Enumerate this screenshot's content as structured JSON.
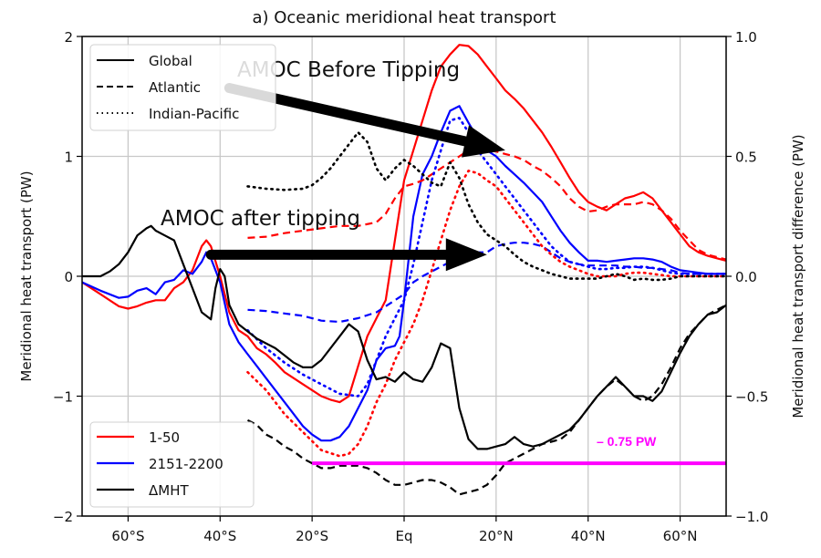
{
  "chart_data": {
    "type": "line",
    "title": "a) Oceanic meridional heat transport",
    "xlabel": "",
    "ylabel": "Meridional heat transport (PW)",
    "y2label": "Meridional heat transport difference (PW)",
    "xlim": [
      -70,
      70
    ],
    "ylim": [
      -2,
      2
    ],
    "y2lim": [
      -1.0,
      1.0
    ],
    "grid": true,
    "x_ticks": [
      {
        "value": -60,
        "label": "60°S"
      },
      {
        "value": -40,
        "label": "40°S"
      },
      {
        "value": -20,
        "label": "20°S"
      },
      {
        "value": 0,
        "label": "Eq"
      },
      {
        "value": 20,
        "label": "20°N"
      },
      {
        "value": 40,
        "label": "40°N"
      },
      {
        "value": 60,
        "label": "60°N"
      }
    ],
    "y_ticks": [
      {
        "value": 2,
        "label": "2"
      },
      {
        "value": 1,
        "label": "1"
      },
      {
        "value": 0,
        "label": "0"
      },
      {
        "value": -1,
        "label": "−1"
      },
      {
        "value": -2,
        "label": "−2"
      }
    ],
    "y2_ticks": [
      {
        "value": 1.0,
        "label": "1.0"
      },
      {
        "value": 0.5,
        "label": "0.5"
      },
      {
        "value": 0.0,
        "label": "0.0"
      },
      {
        "value": -0.5,
        "label": "−0.5"
      },
      {
        "value": -1.0,
        "label": "−1.0"
      }
    ],
    "legend_style": {
      "placement": "upper-left",
      "entries": [
        {
          "label": "Global",
          "dash": "solid"
        },
        {
          "label": "Atlantic",
          "dash": "dashed"
        },
        {
          "label": "Indian-Pacific",
          "dash": "dotted"
        }
      ]
    },
    "legend_color": {
      "placement": "lower-left",
      "entries": [
        {
          "label": "1-50",
          "color": "#ff0000"
        },
        {
          "label": "2151-2200",
          "color": "#0000ff"
        },
        {
          "label": "ΔMHT",
          "color": "#000000"
        }
      ]
    },
    "series": [
      {
        "name": "Global 1-50",
        "color": "#ff0000",
        "dash": "solid",
        "axis": "left",
        "x": [
          -70,
          -66,
          -62,
          -60,
          -58,
          -56,
          -54,
          -52,
          -50,
          -48,
          -46,
          -44,
          -43,
          -42,
          -40,
          -38,
          -36,
          -34,
          -32,
          -30,
          -28,
          -26,
          -24,
          -22,
          -20,
          -18,
          -16,
          -14,
          -12,
          -10,
          -8,
          -6,
          -4,
          -2,
          0,
          2,
          4,
          6,
          8,
          10,
          12,
          14,
          16,
          18,
          20,
          22,
          24,
          26,
          28,
          30,
          32,
          34,
          36,
          38,
          40,
          42,
          44,
          46,
          48,
          50,
          52,
          54,
          56,
          58,
          60,
          62,
          64,
          66,
          68,
          70
        ],
        "y": [
          -0.05,
          -0.15,
          -0.25,
          -0.27,
          -0.25,
          -0.22,
          -0.2,
          -0.2,
          -0.1,
          -0.05,
          0.05,
          0.25,
          0.3,
          0.25,
          0.0,
          -0.3,
          -0.45,
          -0.5,
          -0.6,
          -0.65,
          -0.72,
          -0.8,
          -0.85,
          -0.9,
          -0.95,
          -1.0,
          -1.03,
          -1.05,
          -1.0,
          -0.75,
          -0.5,
          -0.35,
          -0.2,
          0.3,
          0.8,
          1.05,
          1.3,
          1.55,
          1.75,
          1.85,
          1.93,
          1.92,
          1.85,
          1.75,
          1.65,
          1.55,
          1.48,
          1.4,
          1.3,
          1.2,
          1.08,
          0.95,
          0.82,
          0.7,
          0.62,
          0.58,
          0.55,
          0.6,
          0.65,
          0.67,
          0.7,
          0.65,
          0.55,
          0.45,
          0.35,
          0.25,
          0.2,
          0.17,
          0.15,
          0.13
        ]
      },
      {
        "name": "Global 2151-2200",
        "color": "#0000ff",
        "dash": "solid",
        "axis": "left",
        "x": [
          -70,
          -66,
          -62,
          -60,
          -58,
          -56,
          -54,
          -52,
          -50,
          -48,
          -46,
          -44,
          -43,
          -42,
          -40,
          -38,
          -36,
          -34,
          -32,
          -30,
          -28,
          -26,
          -24,
          -22,
          -20,
          -18,
          -16,
          -14,
          -12,
          -10,
          -8,
          -6,
          -4,
          -2,
          -1,
          0,
          2,
          4,
          6,
          8,
          10,
          12,
          14,
          16,
          18,
          20,
          22,
          24,
          26,
          28,
          30,
          32,
          34,
          36,
          38,
          40,
          42,
          44,
          46,
          48,
          50,
          52,
          54,
          56,
          58,
          60,
          62,
          64,
          66,
          68,
          70
        ],
        "y": [
          -0.05,
          -0.12,
          -0.18,
          -0.17,
          -0.12,
          -0.1,
          -0.15,
          -0.05,
          -0.03,
          0.05,
          0.02,
          0.12,
          0.2,
          0.15,
          -0.05,
          -0.4,
          -0.55,
          -0.65,
          -0.75,
          -0.85,
          -0.95,
          -1.05,
          -1.15,
          -1.25,
          -1.32,
          -1.37,
          -1.37,
          -1.34,
          -1.25,
          -1.1,
          -0.95,
          -0.7,
          -0.6,
          -0.58,
          -0.5,
          -0.2,
          0.5,
          0.85,
          1.0,
          1.2,
          1.38,
          1.42,
          1.28,
          1.15,
          1.05,
          1.0,
          0.92,
          0.85,
          0.78,
          0.7,
          0.62,
          0.5,
          0.38,
          0.28,
          0.2,
          0.13,
          0.13,
          0.12,
          0.13,
          0.14,
          0.15,
          0.15,
          0.14,
          0.12,
          0.08,
          0.05,
          0.04,
          0.03,
          0.02,
          0.02,
          0.02
        ]
      },
      {
        "name": "Atlantic 1-50",
        "color": "#ff0000",
        "dash": "dashed",
        "axis": "left",
        "x": [
          -34,
          -30,
          -26,
          -22,
          -18,
          -14,
          -10,
          -6,
          -4,
          -2,
          0,
          2,
          4,
          6,
          8,
          10,
          12,
          14,
          16,
          18,
          20,
          22,
          24,
          26,
          28,
          30,
          32,
          34,
          36,
          38,
          40,
          42,
          44,
          46,
          48,
          50,
          52,
          54,
          56,
          58,
          60,
          62,
          64,
          66,
          68,
          70
        ],
        "y": [
          0.32,
          0.33,
          0.36,
          0.38,
          0.4,
          0.42,
          0.42,
          0.45,
          0.52,
          0.65,
          0.75,
          0.77,
          0.8,
          0.85,
          0.9,
          0.95,
          1.0,
          1.05,
          1.05,
          1.05,
          1.04,
          1.02,
          1.0,
          0.97,
          0.92,
          0.88,
          0.82,
          0.75,
          0.65,
          0.58,
          0.54,
          0.55,
          0.58,
          0.6,
          0.6,
          0.6,
          0.62,
          0.6,
          0.55,
          0.48,
          0.38,
          0.3,
          0.22,
          0.18,
          0.16,
          0.14
        ]
      },
      {
        "name": "Atlantic 2151-2200",
        "color": "#0000ff",
        "dash": "dashed",
        "axis": "left",
        "x": [
          -34,
          -30,
          -26,
          -22,
          -18,
          -14,
          -10,
          -6,
          -2,
          0,
          2,
          4,
          6,
          8,
          10,
          12,
          14,
          16,
          18,
          20,
          22,
          24,
          26,
          28,
          30,
          32,
          34,
          36,
          38,
          40,
          42,
          44,
          46,
          48,
          50,
          52,
          54,
          56,
          58,
          60,
          62,
          64,
          66,
          68,
          70
        ],
        "y": [
          -0.28,
          -0.29,
          -0.31,
          -0.33,
          -0.37,
          -0.38,
          -0.35,
          -0.3,
          -0.2,
          -0.15,
          -0.05,
          0.0,
          0.04,
          0.08,
          0.12,
          0.15,
          0.17,
          0.2,
          0.2,
          0.25,
          0.27,
          0.28,
          0.28,
          0.27,
          0.25,
          0.2,
          0.15,
          0.12,
          0.1,
          0.09,
          0.09,
          0.09,
          0.09,
          0.08,
          0.08,
          0.07,
          0.07,
          0.06,
          0.05,
          0.03,
          0.02,
          0.02,
          0.02,
          0.02,
          0.02
        ]
      },
      {
        "name": "Indian-Pacific 1-50",
        "color": "#ff0000",
        "dash": "dotted",
        "axis": "left",
        "x": [
          -34,
          -30,
          -26,
          -22,
          -18,
          -14,
          -12,
          -10,
          -8,
          -6,
          -4,
          -2,
          0,
          2,
          4,
          6,
          8,
          10,
          12,
          14,
          16,
          18,
          20,
          22,
          24,
          26,
          28,
          30,
          32,
          34,
          36,
          38,
          40,
          42,
          44,
          46,
          48,
          50,
          52,
          54,
          56,
          58,
          60,
          62,
          64,
          66,
          68,
          70
        ],
        "y": [
          -0.8,
          -0.95,
          -1.15,
          -1.3,
          -1.45,
          -1.5,
          -1.48,
          -1.4,
          -1.25,
          -1.05,
          -0.9,
          -0.7,
          -0.55,
          -0.4,
          -0.2,
          0.05,
          0.3,
          0.55,
          0.75,
          0.88,
          0.86,
          0.8,
          0.75,
          0.65,
          0.55,
          0.45,
          0.35,
          0.25,
          0.18,
          0.12,
          0.08,
          0.05,
          0.02,
          0.0,
          0.0,
          0.0,
          0.02,
          0.03,
          0.03,
          0.02,
          0.01,
          0.0,
          0.0,
          0.0,
          0.0,
          0.0,
          0.0,
          0.0
        ]
      },
      {
        "name": "Indian-Pacific 2151-2200",
        "color": "#0000ff",
        "dash": "dotted",
        "axis": "left",
        "x": [
          -34,
          -30,
          -26,
          -22,
          -18,
          -14,
          -10,
          -8,
          -6,
          -4,
          -2,
          0,
          2,
          4,
          6,
          8,
          10,
          12,
          14,
          16,
          18,
          20,
          22,
          24,
          26,
          28,
          30,
          32,
          34,
          36,
          38,
          40,
          42,
          44,
          46,
          48,
          50,
          52,
          54,
          56,
          58,
          60,
          62,
          64,
          66,
          68,
          70
        ],
        "y": [
          -0.45,
          -0.6,
          -0.72,
          -0.82,
          -0.9,
          -0.98,
          -1.0,
          -0.9,
          -0.7,
          -0.5,
          -0.35,
          -0.2,
          0.1,
          0.45,
          0.8,
          1.05,
          1.3,
          1.32,
          1.2,
          1.05,
          0.95,
          0.85,
          0.75,
          0.65,
          0.55,
          0.45,
          0.35,
          0.25,
          0.18,
          0.12,
          0.1,
          0.08,
          0.06,
          0.06,
          0.07,
          0.07,
          0.08,
          0.08,
          0.07,
          0.05,
          0.03,
          0.02,
          0.02,
          0.02,
          0.02,
          0.02,
          0.02
        ]
      },
      {
        "name": "Indian-Pacific ΔMHT",
        "color": "#000000",
        "dash": "dotted",
        "axis": "left",
        "x": [
          -34,
          -30,
          -26,
          -22,
          -20,
          -18,
          -16,
          -14,
          -12,
          -10,
          -8,
          -6,
          -4,
          -2,
          0,
          2,
          4,
          6,
          8,
          10,
          12,
          14,
          16,
          18,
          20,
          22,
          24,
          26,
          28,
          30,
          32,
          34,
          36,
          38,
          40,
          42,
          44,
          46,
          48,
          50,
          52,
          54,
          56,
          58,
          60,
          62,
          64,
          66,
          68,
          70
        ],
        "y": [
          0.75,
          0.73,
          0.72,
          0.73,
          0.76,
          0.82,
          0.9,
          1.0,
          1.1,
          1.2,
          1.12,
          0.9,
          0.8,
          0.9,
          0.97,
          0.92,
          0.85,
          0.78,
          0.75,
          0.95,
          0.82,
          0.6,
          0.45,
          0.35,
          0.3,
          0.25,
          0.18,
          0.12,
          0.08,
          0.05,
          0.02,
          0.0,
          -0.02,
          -0.02,
          -0.02,
          -0.02,
          0.0,
          0.02,
          0.0,
          -0.03,
          -0.02,
          -0.03,
          -0.03,
          -0.02,
          0.0,
          0.0,
          0.0,
          0.0,
          0.0,
          0.0
        ]
      },
      {
        "name": "Global ΔMHT",
        "color": "#000000",
        "dash": "solid",
        "axis": "right",
        "x": [
          -70,
          -66,
          -64,
          -62,
          -60,
          -58,
          -56,
          -55,
          -54,
          -52,
          -50,
          -48,
          -46,
          -44,
          -42,
          -41,
          -40,
          -39,
          -38,
          -36,
          -34,
          -32,
          -30,
          -28,
          -26,
          -24,
          -22,
          -20,
          -18,
          -16,
          -14,
          -12,
          -10,
          -8,
          -6,
          -4,
          -2,
          0,
          2,
          4,
          6,
          8,
          10,
          12,
          14,
          16,
          18,
          20,
          22,
          24,
          26,
          28,
          30,
          32,
          34,
          36,
          38,
          40,
          42,
          44,
          46,
          48,
          50,
          52,
          54,
          56,
          58,
          60,
          62,
          64,
          66,
          68,
          70
        ],
        "y": [
          0.0,
          0.0,
          0.02,
          0.05,
          0.1,
          0.17,
          0.2,
          0.21,
          0.19,
          0.17,
          0.15,
          0.05,
          -0.05,
          -0.15,
          -0.18,
          -0.05,
          0.03,
          0.0,
          -0.12,
          -0.2,
          -0.23,
          -0.26,
          -0.28,
          -0.3,
          -0.33,
          -0.36,
          -0.38,
          -0.38,
          -0.35,
          -0.3,
          -0.25,
          -0.2,
          -0.23,
          -0.35,
          -0.43,
          -0.42,
          -0.44,
          -0.4,
          -0.43,
          -0.44,
          -0.38,
          -0.28,
          -0.3,
          -0.55,
          -0.68,
          -0.72,
          -0.72,
          -0.71,
          -0.7,
          -0.67,
          -0.7,
          -0.71,
          -0.7,
          -0.68,
          -0.66,
          -0.64,
          -0.6,
          -0.55,
          -0.5,
          -0.46,
          -0.42,
          -0.46,
          -0.5,
          -0.5,
          -0.52,
          -0.48,
          -0.4,
          -0.32,
          -0.25,
          -0.2,
          -0.16,
          -0.15,
          -0.12
        ]
      },
      {
        "name": "Atlantic ΔMHT",
        "color": "#000000",
        "dash": "dashed",
        "axis": "right",
        "x": [
          -34,
          -32,
          -30,
          -28,
          -26,
          -24,
          -22,
          -20,
          -18,
          -16,
          -14,
          -12,
          -10,
          -8,
          -6,
          -4,
          -2,
          0,
          2,
          4,
          6,
          8,
          10,
          12,
          14,
          16,
          18,
          20,
          22,
          24,
          26,
          28,
          30,
          32,
          34,
          36,
          38,
          40,
          42,
          44,
          46,
          48,
          50,
          52,
          54,
          56,
          58,
          60,
          62,
          64,
          66,
          68,
          70
        ],
        "y": [
          -0.6,
          -0.62,
          -0.66,
          -0.68,
          -0.71,
          -0.73,
          -0.76,
          -0.78,
          -0.8,
          -0.8,
          -0.79,
          -0.79,
          -0.79,
          -0.8,
          -0.82,
          -0.85,
          -0.87,
          -0.87,
          -0.86,
          -0.85,
          -0.85,
          -0.86,
          -0.88,
          -0.91,
          -0.9,
          -0.89,
          -0.87,
          -0.83,
          -0.78,
          -0.76,
          -0.74,
          -0.72,
          -0.7,
          -0.69,
          -0.68,
          -0.65,
          -0.6,
          -0.55,
          -0.5,
          -0.46,
          -0.43,
          -0.46,
          -0.5,
          -0.52,
          -0.5,
          -0.45,
          -0.38,
          -0.3,
          -0.24,
          -0.2,
          -0.16,
          -0.14,
          -0.12
        ]
      }
    ],
    "reference_line": {
      "name": "magenta reference",
      "color": "#ff00ff",
      "axis": "right",
      "x_start": -20,
      "x_end": 70,
      "y": -0.78
    },
    "annotations": [
      {
        "text": "AMOC Before Tipping",
        "arrow_from": [
          -38,
          1.57
        ],
        "arrow_to": [
          22,
          1.05
        ]
      },
      {
        "text": "AMOC after tipping",
        "arrow_from": [
          -42,
          0.18
        ],
        "arrow_to": [
          18,
          0.18
        ]
      },
      {
        "text": "– 0.75 PW",
        "color": "#ff00ff"
      }
    ]
  }
}
